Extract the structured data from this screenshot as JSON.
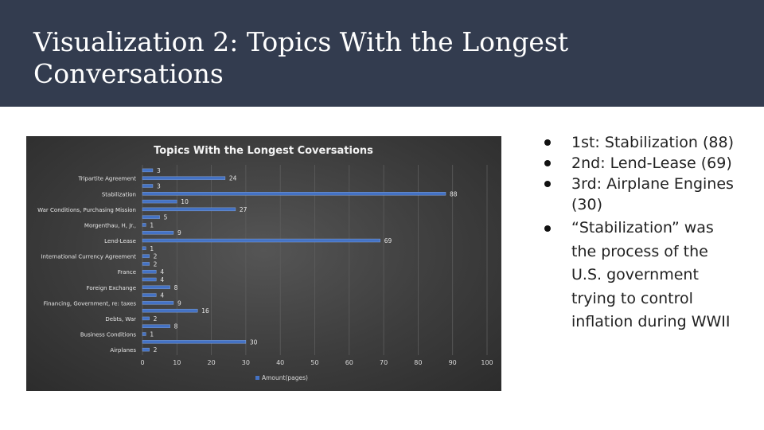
{
  "slide": {
    "title": "Visualization 2: Topics With the Longest Conversations"
  },
  "bullets": [
    "1st: Stabilization (88)",
    "2nd: Lend-Lease (69)",
    "3rd: Airplane Engines (30)",
    "“Stabilization” was the process of the U.S. government trying to control inflation during WWII"
  ],
  "chart_data": {
    "type": "bar",
    "orientation": "horizontal",
    "title": "Topics With the Longest Coversations",
    "xlim": [
      0,
      100
    ],
    "xticks": [
      "0",
      "10",
      "20",
      "30",
      "40",
      "50",
      "60",
      "70",
      "80",
      "90",
      "100"
    ],
    "grid": true,
    "legend": "bottom",
    "bar_color": "#4472c4",
    "series": [
      {
        "name": "Amount(pages)",
        "values": [
          2,
          30,
          1,
          8,
          2,
          16,
          9,
          4,
          8,
          4,
          4,
          2,
          2,
          1,
          69,
          9,
          1,
          5,
          27,
          10,
          88,
          3,
          24,
          3
        ]
      }
    ],
    "categories": [
      "Airplanes",
      "",
      "Business Conditions",
      "",
      "Debts, War",
      "",
      "Financing, Government, re: taxes",
      "",
      "Foreign Exchange",
      "",
      "France",
      "",
      "International Currency Agreement",
      "",
      "Lend-Lease",
      "",
      "Morgenthau, H, Jr.,",
      "",
      "War Conditions, Purchasing Mission",
      "",
      "Stabilization",
      "",
      "Tripartite Agreement",
      ""
    ]
  }
}
